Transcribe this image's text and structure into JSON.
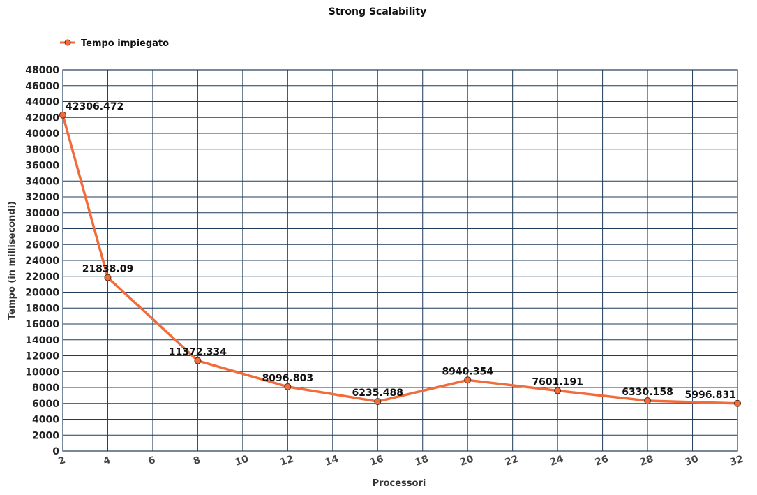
{
  "chart_data": {
    "type": "line",
    "title": "Strong Scalability",
    "xlabel": "Processori",
    "ylabel": "Tempo (in millisecondi)",
    "xlim": [
      2,
      32
    ],
    "ylim": [
      0,
      48000
    ],
    "x_ticks": [
      2,
      4,
      6,
      8,
      10,
      12,
      14,
      16,
      18,
      20,
      22,
      24,
      26,
      28,
      30,
      32
    ],
    "y_ticks": [
      0,
      2000,
      4000,
      6000,
      8000,
      10000,
      12000,
      14000,
      16000,
      18000,
      20000,
      22000,
      24000,
      26000,
      28000,
      30000,
      32000,
      34000,
      36000,
      38000,
      40000,
      42000,
      44000,
      46000,
      48000
    ],
    "grid": true,
    "legend_position": "top-left",
    "series": [
      {
        "name": "Tempo impiegato",
        "color": "#f26b3a",
        "x": [
          2,
          4,
          8,
          12,
          16,
          20,
          24,
          28,
          32
        ],
        "y": [
          42306.472,
          21838.09,
          11372.334,
          8096.803,
          6235.488,
          8940.354,
          7601.191,
          6330.158,
          5996.831
        ],
        "labels": [
          "42306.472",
          "21838.09",
          "11372.334",
          "8096.803",
          "6235.488",
          "8940.354",
          "7601.191",
          "6330.158",
          "5996.831"
        ]
      }
    ]
  }
}
